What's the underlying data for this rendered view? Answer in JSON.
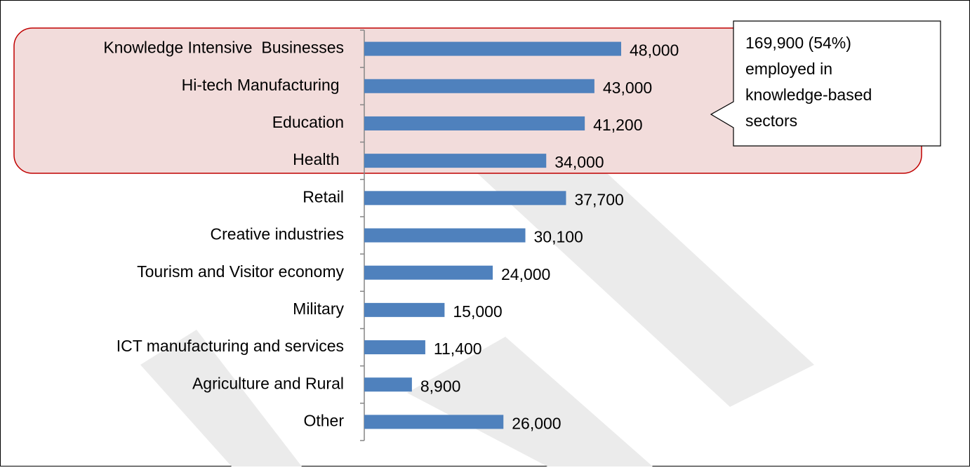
{
  "chart_data": {
    "type": "bar",
    "orientation": "horizontal",
    "categories": [
      "Knowledge Intensive  Businesses",
      "Hi-tech Manufacturing ",
      "Education",
      "Health ",
      "Retail",
      "Creative industries",
      "Tourism and Visitor economy",
      "Military",
      "ICT manufacturing and services",
      "Agriculture and Rural",
      "Other"
    ],
    "values": [
      48000,
      43000,
      41200,
      34000,
      37700,
      30100,
      24000,
      15000,
      11400,
      8900,
      26000
    ],
    "value_labels": [
      "48,000",
      "43,000",
      "41,200",
      "34,000",
      "37,700",
      "30,100",
      "24,000",
      "15,000",
      "11,400",
      "8,900",
      "26,000"
    ],
    "color": "#4f81bd",
    "annotation": [
      "169,900 (54%)",
      "employed in",
      "knowledge-based",
      "sectors"
    ]
  }
}
